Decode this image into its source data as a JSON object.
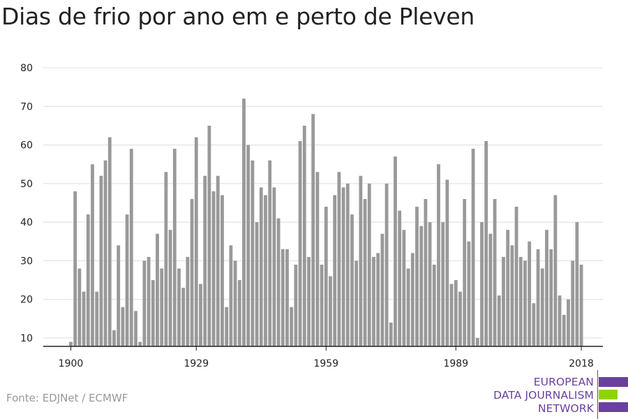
{
  "title": "Dias de frio por ano em e perto de Pleven",
  "source": "Fonte: EDJNet / ECMWF",
  "logo": {
    "lines": [
      "EUROPEAN",
      "DATA JOURNALISM",
      "NETWORK"
    ],
    "colors": {
      "purple": "#6b3fa0",
      "green": "#8fd400"
    }
  },
  "chart_data": {
    "type": "bar",
    "x_start": 1900,
    "x_end": 2018,
    "xticks": [
      1900,
      1929,
      1959,
      1989,
      2018
    ],
    "yticks": [
      10,
      20,
      30,
      40,
      50,
      60,
      70,
      80
    ],
    "ylim": [
      7,
      80
    ],
    "bar_color": "#999999",
    "grid": true,
    "values": [
      9,
      48,
      28,
      22,
      42,
      55,
      22,
      52,
      56,
      62,
      12,
      34,
      18,
      42,
      59,
      17,
      9,
      30,
      31,
      25,
      37,
      28,
      53,
      38,
      59,
      28,
      23,
      31,
      46,
      62,
      24,
      52,
      65,
      48,
      52,
      47,
      18,
      34,
      30,
      25,
      72,
      60,
      56,
      40,
      49,
      47,
      56,
      49,
      41,
      33,
      33,
      18,
      29,
      61,
      65,
      31,
      68,
      53,
      29,
      44,
      26,
      47,
      53,
      49,
      50,
      42,
      30,
      52,
      46,
      50,
      31,
      32,
      37,
      50,
      14,
      57,
      43,
      38,
      28,
      32,
      44,
      39,
      46,
      40,
      29,
      55,
      40,
      51,
      24,
      25,
      22,
      46,
      35,
      59,
      10,
      40,
      61,
      37,
      46,
      21,
      31,
      38,
      34,
      44,
      31,
      30,
      35,
      19,
      33,
      28,
      38,
      33,
      47,
      21,
      16,
      20,
      30,
      40,
      29
    ]
  }
}
